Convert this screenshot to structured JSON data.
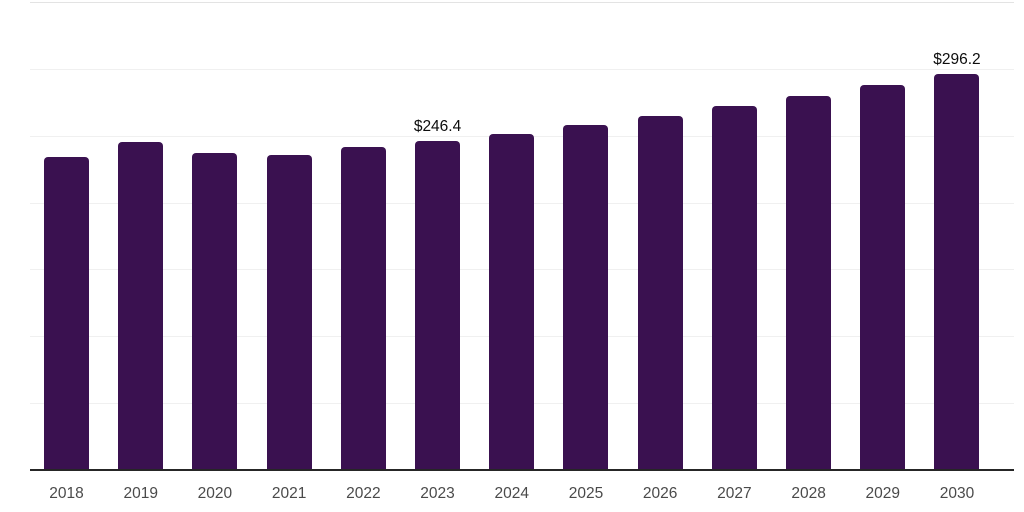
{
  "chart_data": {
    "type": "bar",
    "title": "",
    "xlabel": "",
    "ylabel": "",
    "categories": [
      "2018",
      "2019",
      "2020",
      "2021",
      "2022",
      "2023",
      "2024",
      "2025",
      "2026",
      "2027",
      "2028",
      "2029",
      "2030"
    ],
    "values": [
      234.0,
      245.3,
      237.0,
      235.6,
      241.5,
      246.4,
      251.6,
      258.2,
      265.0,
      272.1,
      279.4,
      287.6,
      296.2
    ],
    "data_labels": {
      "2023": "$246.4",
      "2030": "$296.2"
    },
    "ylim": [
      0,
      350
    ],
    "grid_step": 50,
    "grid": true,
    "legend": "none",
    "value_unit": "USD"
  },
  "style": {
    "bar_color": "#3a1150",
    "axis_line_color": "#262626",
    "gridline_color": "#f0f0f0",
    "plot_top_line_color": "#e3e3e3",
    "tick_label_color": "#4a4a4a",
    "data_label_color": "#0d0d0d",
    "background_color": "#ffffff"
  }
}
